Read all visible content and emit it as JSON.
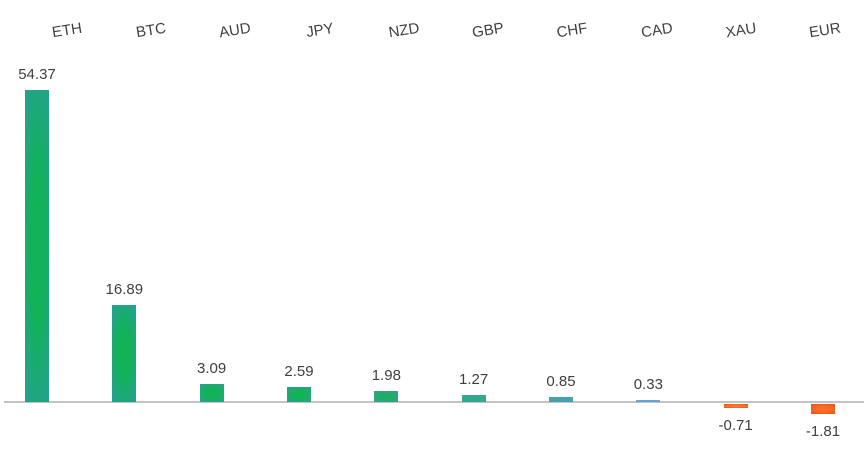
{
  "chart_data": {
    "type": "bar",
    "categories": [
      "ETH",
      "BTC",
      "AUD",
      "JPY",
      "NZD",
      "GBP",
      "CHF",
      "CAD",
      "XAU",
      "EUR"
    ],
    "values": [
      54.37,
      16.89,
      3.09,
      2.59,
      1.98,
      1.27,
      0.85,
      0.33,
      -0.71,
      -1.81
    ],
    "data_labels": [
      "54.37",
      "16.89",
      "3.09",
      "2.59",
      "1.98",
      "1.27",
      "0.85",
      "0.33",
      "-0.71",
      "-1.81"
    ],
    "bar_colors": [
      {
        "center": "#12b259",
        "edge": "#24a18e"
      },
      {
        "center": "#12b259",
        "edge": "#24a18e"
      },
      {
        "center": "#12b257",
        "edge": "#2ba08c"
      },
      {
        "center": "#12b257",
        "edge": "#2ba08c"
      },
      {
        "center": "#1fae68",
        "edge": "#35a28c"
      },
      {
        "center": "#2faa8a",
        "edge": "#3fa097"
      },
      {
        "center": "#42a3a8",
        "edge": "#4a9fae"
      },
      {
        "center": "#62a0d2",
        "edge": "#6ca7d7"
      },
      {
        "center": "#f87434",
        "edge": "#ed5a15"
      },
      {
        "center": "#f86b29",
        "edge": "#ed5514"
      }
    ],
    "title": "",
    "xlabel": "",
    "ylabel": "",
    "ylim": [
      -10,
      60
    ],
    "axis": {
      "baseline_color": "#c3c3c3",
      "y_axis_visible": false,
      "gridlines": false,
      "category_label_position": "top",
      "category_label_rotation_deg": -9,
      "data_labels_visible": true
    },
    "legend_position": "none",
    "text_color": "#404040"
  }
}
